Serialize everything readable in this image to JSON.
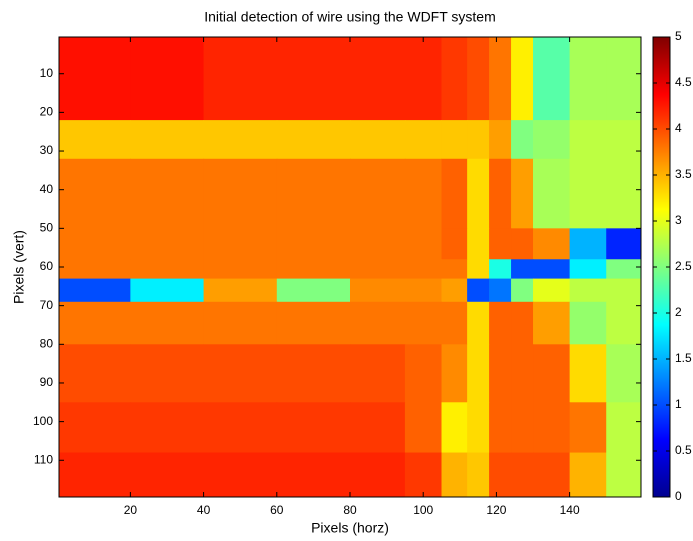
{
  "chart_data": {
    "type": "heatmap",
    "title": "Initial detection of wire using the WDFT system",
    "xlabel": "Pixels (horz)",
    "ylabel": "Pixels (vert)",
    "xlim": [
      0.5,
      159.5
    ],
    "ylim": [
      119.5,
      0.5
    ],
    "xticks": [
      20,
      40,
      60,
      80,
      100,
      120,
      140
    ],
    "yticks": [
      10,
      20,
      30,
      40,
      50,
      60,
      70,
      80,
      90,
      100,
      110
    ],
    "clim": [
      0,
      5
    ],
    "cticks": [
      0,
      0.5,
      1,
      1.5,
      2,
      2.5,
      3,
      3.5,
      4,
      4.5,
      5
    ],
    "colormap": "jet",
    "x_edges": [
      0.5,
      20,
      40,
      60,
      80,
      95,
      105,
      112,
      118,
      124,
      130,
      140,
      150,
      159.5
    ],
    "y_edges": [
      0.5,
      22,
      32,
      50,
      58,
      63,
      69,
      80,
      95,
      108,
      119.5
    ],
    "z": [
      [
        4.3,
        4.3,
        4.2,
        4.2,
        4.2,
        4.2,
        4.1,
        4.0,
        3.8,
        3.2,
        2.3,
        2.7,
        2.7
      ],
      [
        3.4,
        3.4,
        3.4,
        3.4,
        3.4,
        3.4,
        3.4,
        3.4,
        3.6,
        2.5,
        2.6,
        2.8,
        2.8
      ],
      [
        3.8,
        3.8,
        3.8,
        3.8,
        3.8,
        3.8,
        3.9,
        3.3,
        3.9,
        3.6,
        2.7,
        2.8,
        2.8
      ],
      [
        3.8,
        3.8,
        3.8,
        3.8,
        3.8,
        3.8,
        3.9,
        3.3,
        3.9,
        3.9,
        3.7,
        1.5,
        0.8
      ],
      [
        3.8,
        3.8,
        3.8,
        3.8,
        3.8,
        3.8,
        3.8,
        3.3,
        2.0,
        1.0,
        1.0,
        1.8,
        2.5
      ],
      [
        1.0,
        1.8,
        3.6,
        2.5,
        3.7,
        3.7,
        3.6,
        1.0,
        1.2,
        2.5,
        3.0,
        2.8,
        2.8
      ],
      [
        3.8,
        3.8,
        3.8,
        3.8,
        3.8,
        3.8,
        3.8,
        3.3,
        3.9,
        3.9,
        3.6,
        2.6,
        2.8
      ],
      [
        4.0,
        4.0,
        4.0,
        4.0,
        4.0,
        3.9,
        3.7,
        3.3,
        3.9,
        3.9,
        3.9,
        3.3,
        2.7
      ],
      [
        4.1,
        4.1,
        4.1,
        4.1,
        4.1,
        3.9,
        3.2,
        3.3,
        3.9,
        3.9,
        3.9,
        3.8,
        2.8
      ],
      [
        4.2,
        4.2,
        4.2,
        4.2,
        4.2,
        4.1,
        3.5,
        3.4,
        4.0,
        4.0,
        4.0,
        3.5,
        2.8
      ]
    ]
  }
}
